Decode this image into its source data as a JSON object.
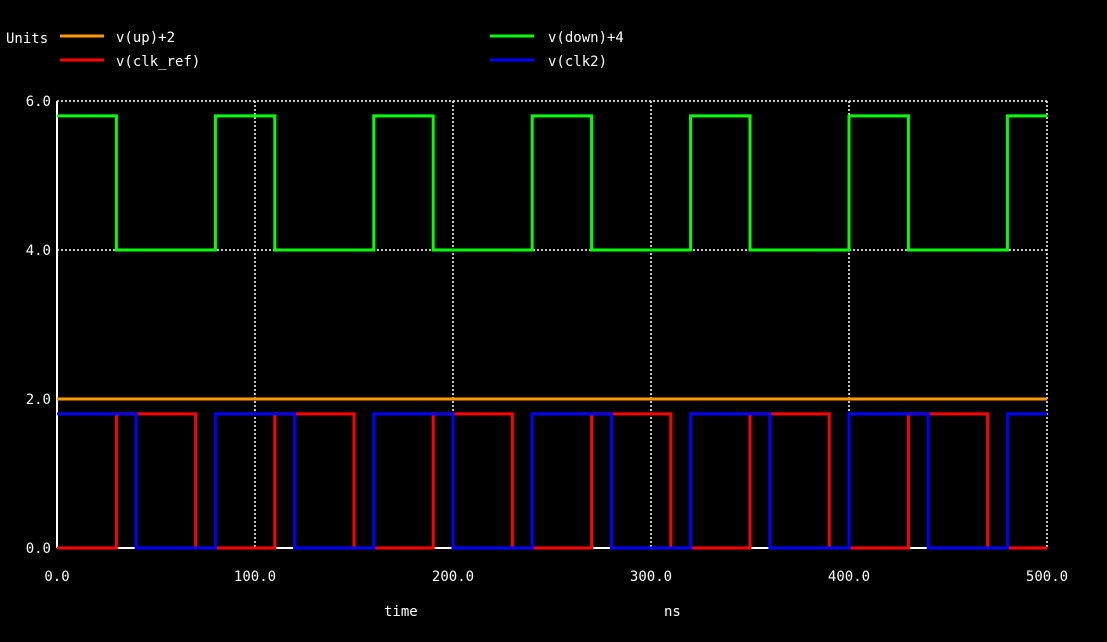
{
  "chart_data": {
    "type": "line",
    "ylabel": "Units",
    "xlabel": "time",
    "xunit": "ns",
    "xlim": [
      0,
      500
    ],
    "ylim": [
      0,
      6
    ],
    "xticks": [
      0,
      100,
      200,
      300,
      400,
      500
    ],
    "xtick_labels": [
      "0.0",
      "100.0",
      "200.0",
      "300.0",
      "400.0",
      "500.0"
    ],
    "yticks": [
      0,
      2,
      4,
      6
    ],
    "ytick_labels": [
      "0.0",
      "2.0",
      "4.0",
      "6.0"
    ],
    "grid": true,
    "legend_position": "top",
    "series": [
      {
        "name": "v(up)+2",
        "color": "#ff9900",
        "x": [
          0,
          500
        ],
        "y": [
          2.0,
          2.0
        ]
      },
      {
        "name": "v(clk_ref)",
        "color": "#ff0000",
        "x": [
          0,
          30,
          30,
          70,
          70,
          110,
          110,
          150,
          150,
          190,
          190,
          230,
          230,
          270,
          270,
          310,
          310,
          350,
          350,
          390,
          390,
          430,
          430,
          470,
          470,
          500
        ],
        "y": [
          0,
          0,
          1.8,
          1.8,
          0,
          0,
          1.8,
          1.8,
          0,
          0,
          1.8,
          1.8,
          0,
          0,
          1.8,
          1.8,
          0,
          0,
          1.8,
          1.8,
          0,
          0,
          1.8,
          1.8,
          0,
          0
        ]
      },
      {
        "name": "v(down)+4",
        "color": "#00ff00",
        "x": [
          0,
          30,
          30,
          80,
          80,
          110,
          110,
          160,
          160,
          190,
          190,
          240,
          240,
          270,
          270,
          320,
          320,
          350,
          350,
          400,
          400,
          430,
          430,
          480,
          480,
          500
        ],
        "y": [
          5.8,
          5.8,
          4.0,
          4.0,
          5.8,
          5.8,
          4.0,
          4.0,
          5.8,
          5.8,
          4.0,
          4.0,
          5.8,
          5.8,
          4.0,
          4.0,
          5.8,
          5.8,
          4.0,
          4.0,
          5.8,
          5.8,
          4.0,
          4.0,
          5.8,
          5.8
        ]
      },
      {
        "name": "v(clk2)",
        "color": "#0000ff",
        "x": [
          0,
          40,
          40,
          80,
          80,
          120,
          120,
          160,
          160,
          200,
          200,
          240,
          240,
          280,
          280,
          320,
          320,
          360,
          360,
          400,
          400,
          440,
          440,
          480,
          480,
          500
        ],
        "y": [
          1.8,
          1.8,
          0,
          0,
          1.8,
          1.8,
          0,
          0,
          1.8,
          1.8,
          0,
          0,
          1.8,
          1.8,
          0,
          0,
          1.8,
          1.8,
          0,
          0,
          1.8,
          1.8,
          0,
          0,
          1.8,
          1.8
        ]
      }
    ]
  }
}
